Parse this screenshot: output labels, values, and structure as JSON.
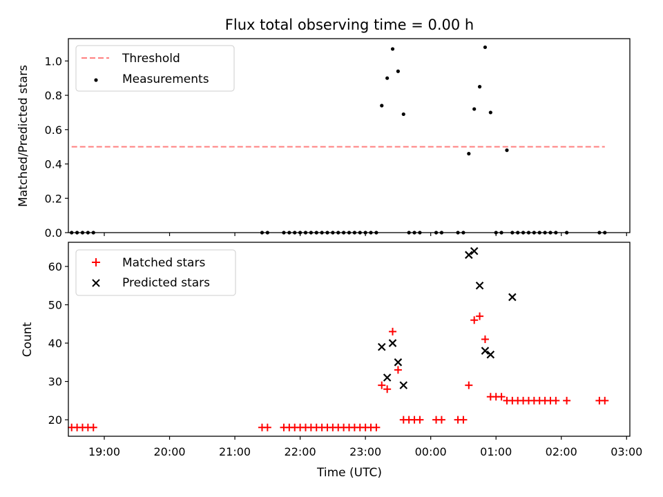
{
  "title": "Flux total observing time = 0.00 h",
  "colors": {
    "threshold": "#ff7f7f",
    "measurement": "#000000",
    "matched": "#ff0000",
    "predicted": "#000000"
  },
  "chart_data": [
    {
      "type": "scatter",
      "panel": "top",
      "ylabel": "Matched/Predicted stars",
      "xlim": [
        "18:27",
        "03:03"
      ],
      "ylim": [
        0,
        1.13
      ],
      "yticks": [
        "0.0",
        "0.2",
        "0.4",
        "0.6",
        "0.8",
        "1.0"
      ],
      "legend": {
        "position": "top-left",
        "entries": [
          "Threshold",
          "Measurements"
        ]
      },
      "threshold": {
        "name": "Threshold",
        "y": 0.5,
        "x_start": "18:30",
        "x_end": "02:40",
        "style": "dashed"
      },
      "series": [
        {
          "name": "Measurements",
          "x": [
            "18:30",
            "18:35",
            "18:40",
            "18:45",
            "18:50",
            "21:25",
            "21:30",
            "21:45",
            "21:50",
            "21:55",
            "22:00",
            "22:05",
            "22:10",
            "22:15",
            "22:20",
            "22:25",
            "22:30",
            "22:35",
            "22:40",
            "22:45",
            "22:50",
            "22:55",
            "23:00",
            "23:05",
            "23:10",
            "23:15",
            "23:20",
            "23:25",
            "23:30",
            "23:35",
            "23:40",
            "23:45",
            "23:50",
            "00:05",
            "00:10",
            "00:25",
            "00:30",
            "00:35",
            "00:40",
            "00:45",
            "00:50",
            "00:55",
            "01:00",
            "01:05",
            "01:10",
            "01:15",
            "01:20",
            "01:25",
            "01:30",
            "01:35",
            "01:40",
            "01:45",
            "01:50",
            "01:55",
            "02:05",
            "02:35",
            "02:40"
          ],
          "y": [
            0,
            0,
            0,
            0,
            0,
            0,
            0,
            0,
            0,
            0,
            0,
            0,
            0,
            0,
            0,
            0,
            0,
            0,
            0,
            0,
            0,
            0,
            0,
            0,
            0,
            0.74,
            0.9,
            1.07,
            0.94,
            0.69,
            0,
            0,
            0,
            0,
            0,
            0,
            0,
            0.46,
            0.72,
            0.85,
            1.08,
            0.7,
            0,
            0,
            0.48,
            0,
            0,
            0,
            0,
            0,
            0,
            0,
            0,
            0,
            0,
            0,
            0
          ]
        }
      ]
    },
    {
      "type": "scatter",
      "panel": "bottom",
      "xlabel": "Time (UTC)",
      "ylabel": "Count",
      "xlim": [
        "18:27",
        "03:03"
      ],
      "ylim": [
        15.7,
        66.3
      ],
      "xticks": [
        "19:00",
        "20:00",
        "21:00",
        "22:00",
        "23:00",
        "00:00",
        "01:00",
        "02:00",
        "03:00"
      ],
      "yticks": [
        "20",
        "30",
        "40",
        "50",
        "60"
      ],
      "legend": {
        "position": "top-left",
        "entries": [
          "Matched stars",
          "Predicted stars"
        ]
      },
      "series": [
        {
          "name": "Matched stars",
          "marker": "plus",
          "x": [
            "18:30",
            "18:35",
            "18:40",
            "18:45",
            "18:50",
            "21:25",
            "21:30",
            "21:45",
            "21:50",
            "21:55",
            "22:00",
            "22:05",
            "22:10",
            "22:15",
            "22:20",
            "22:25",
            "22:30",
            "22:35",
            "22:40",
            "22:45",
            "22:50",
            "22:55",
            "23:00",
            "23:05",
            "23:10",
            "23:15",
            "23:20",
            "23:25",
            "23:30",
            "23:35",
            "23:40",
            "23:45",
            "23:50",
            "00:05",
            "00:10",
            "00:25",
            "00:30",
            "00:35",
            "00:40",
            "00:45",
            "00:50",
            "00:55",
            "01:00",
            "01:05",
            "01:10",
            "01:15",
            "01:20",
            "01:25",
            "01:30",
            "01:35",
            "01:40",
            "01:45",
            "01:50",
            "01:55",
            "02:05",
            "02:35",
            "02:40"
          ],
          "y": [
            18,
            18,
            18,
            18,
            18,
            18,
            18,
            18,
            18,
            18,
            18,
            18,
            18,
            18,
            18,
            18,
            18,
            18,
            18,
            18,
            18,
            18,
            18,
            18,
            18,
            29,
            28,
            43,
            33,
            20,
            20,
            20,
            20,
            20,
            20,
            20,
            20,
            29,
            46,
            47,
            41,
            26,
            26,
            26,
            25,
            25,
            25,
            25,
            25,
            25,
            25,
            25,
            25,
            25,
            25,
            25,
            25
          ]
        },
        {
          "name": "Predicted stars",
          "marker": "x",
          "x": [
            "23:15",
            "23:20",
            "23:25",
            "23:30",
            "23:35",
            "00:35",
            "00:40",
            "00:45",
            "00:50",
            "00:55",
            "01:15"
          ],
          "y": [
            39,
            31,
            40,
            35,
            29,
            63,
            64,
            55,
            38,
            37,
            52
          ]
        }
      ]
    }
  ]
}
